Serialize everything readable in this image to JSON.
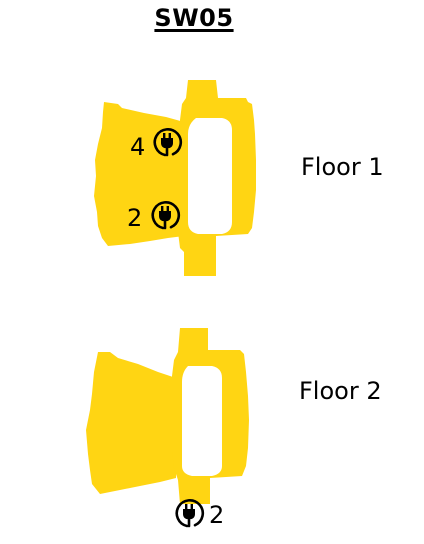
{
  "map": {
    "title": "SW05",
    "fill_color": "#FFD513",
    "floors": [
      {
        "label": "Floor 1",
        "outlets": [
          {
            "count": "4",
            "icon": "power-plug-icon"
          },
          {
            "count": "2",
            "icon": "power-plug-icon"
          }
        ]
      },
      {
        "label": "Floor 2",
        "outlets": [
          {
            "count": "2",
            "icon": "power-plug-icon"
          }
        ]
      }
    ]
  }
}
